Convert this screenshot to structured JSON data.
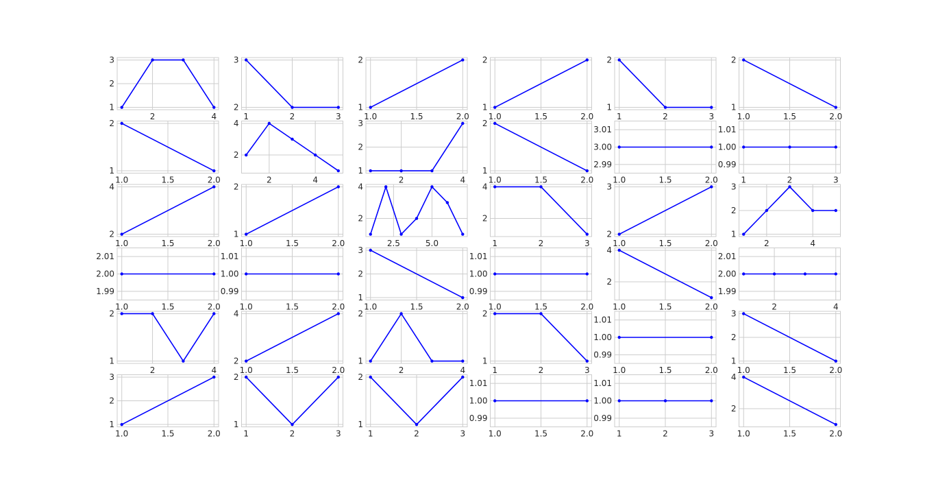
{
  "colors": {
    "line": "#0000ff",
    "grid": "#cccccc",
    "frame": "#cccccc",
    "background": "#ffffff",
    "text": "#262626"
  },
  "chart_data": [
    {
      "type": "line",
      "x": [
        1,
        2,
        3,
        4
      ],
      "values": [
        1,
        3,
        3,
        1
      ],
      "xticks": [
        "2",
        "4"
      ],
      "yticks": [
        "1",
        "2",
        "3"
      ]
    },
    {
      "type": "line",
      "x": [
        1,
        2,
        3
      ],
      "values": [
        3,
        2,
        2
      ],
      "xticks": [
        "1",
        "2",
        "3"
      ],
      "yticks": [
        "2",
        "3"
      ]
    },
    {
      "type": "line",
      "x": [
        1,
        2
      ],
      "values": [
        1,
        2
      ],
      "xticks": [
        "1.0",
        "1.5",
        "2.0"
      ],
      "yticks": [
        "1",
        "2"
      ]
    },
    {
      "type": "line",
      "x": [
        1,
        2
      ],
      "values": [
        1,
        2
      ],
      "xticks": [
        "1.0",
        "1.5",
        "2.0"
      ],
      "yticks": [
        "1",
        "2"
      ]
    },
    {
      "type": "line",
      "x": [
        1,
        2,
        3
      ],
      "values": [
        2,
        1,
        1
      ],
      "xticks": [
        "1",
        "2",
        "3"
      ],
      "yticks": [
        "1",
        "2"
      ]
    },
    {
      "type": "line",
      "x": [
        1,
        2
      ],
      "values": [
        2,
        1
      ],
      "xticks": [
        "1.0",
        "1.5",
        "2.0"
      ],
      "yticks": [
        "1",
        "2"
      ]
    },
    {
      "type": "line",
      "x": [
        1,
        2
      ],
      "values": [
        2,
        1
      ],
      "xticks": [
        "1.0",
        "1.5",
        "2.0"
      ],
      "yticks": [
        "1",
        "2"
      ]
    },
    {
      "type": "line",
      "x": [
        1,
        2,
        3,
        4,
        5
      ],
      "values": [
        2,
        4,
        3,
        2,
        1
      ],
      "xticks": [
        "2",
        "4"
      ],
      "yticks": [
        "2",
        "4"
      ]
    },
    {
      "type": "line",
      "x": [
        1,
        2,
        3,
        4
      ],
      "values": [
        1,
        1,
        1,
        3
      ],
      "xticks": [
        "2",
        "4"
      ],
      "yticks": [
        "1",
        "2",
        "3"
      ]
    },
    {
      "type": "line",
      "x": [
        1,
        2
      ],
      "values": [
        2,
        1
      ],
      "xticks": [
        "1.0",
        "1.5",
        "2.0"
      ],
      "yticks": [
        "1",
        "2"
      ]
    },
    {
      "type": "line",
      "x": [
        1,
        2
      ],
      "values": [
        3,
        3
      ],
      "xticks": [
        "1.0",
        "1.5",
        "2.0"
      ],
      "yticks": [
        "2.99",
        "3.00",
        "3.01"
      ]
    },
    {
      "type": "line",
      "x": [
        1,
        2,
        3
      ],
      "values": [
        1,
        1,
        1
      ],
      "xticks": [
        "1",
        "2",
        "3"
      ],
      "yticks": [
        "0.99",
        "1.00",
        "1.01"
      ]
    },
    {
      "type": "line",
      "x": [
        1,
        2
      ],
      "values": [
        2,
        4
      ],
      "xticks": [
        "1.0",
        "1.5",
        "2.0"
      ],
      "yticks": [
        "2",
        "4"
      ]
    },
    {
      "type": "line",
      "x": [
        1,
        2
      ],
      "values": [
        1,
        2
      ],
      "xticks": [
        "1.0",
        "1.5",
        "2.0"
      ],
      "yticks": [
        "1",
        "2"
      ]
    },
    {
      "type": "line",
      "x": [
        1,
        2,
        3,
        4,
        5,
        6,
        7
      ],
      "values": [
        1,
        4,
        1,
        2,
        4,
        3,
        1
      ],
      "xticks": [
        "2.5",
        "5.0"
      ],
      "yticks": [
        "2",
        "4"
      ]
    },
    {
      "type": "line",
      "x": [
        1,
        2,
        3
      ],
      "values": [
        4,
        4,
        1
      ],
      "xticks": [
        "1",
        "2",
        "3"
      ],
      "yticks": [
        "2",
        "4"
      ]
    },
    {
      "type": "line",
      "x": [
        1,
        2
      ],
      "values": [
        2,
        3
      ],
      "xticks": [
        "1.0",
        "1.5",
        "2.0"
      ],
      "yticks": [
        "2",
        "3"
      ]
    },
    {
      "type": "line",
      "x": [
        1,
        2,
        3,
        4,
        5
      ],
      "values": [
        1,
        2,
        3,
        2,
        2
      ],
      "xticks": [
        "2",
        "4"
      ],
      "yticks": [
        "1",
        "2",
        "3"
      ]
    },
    {
      "type": "line",
      "x": [
        1,
        2
      ],
      "values": [
        2,
        2
      ],
      "xticks": [
        "1.0",
        "1.5",
        "2.0"
      ],
      "yticks": [
        "1.99",
        "2.00",
        "2.01"
      ]
    },
    {
      "type": "line",
      "x": [
        1,
        2
      ],
      "values": [
        1,
        1
      ],
      "xticks": [
        "1.0",
        "1.5",
        "2.0"
      ],
      "yticks": [
        "0.99",
        "1.00",
        "1.01"
      ]
    },
    {
      "type": "line",
      "x": [
        1,
        2
      ],
      "values": [
        3,
        1
      ],
      "xticks": [
        "1.0",
        "1.5",
        "2.0"
      ],
      "yticks": [
        "1",
        "2",
        "3"
      ]
    },
    {
      "type": "line",
      "x": [
        1,
        2
      ],
      "values": [
        1,
        1
      ],
      "xticks": [
        "1.0",
        "1.5",
        "2.0"
      ],
      "yticks": [
        "0.99",
        "1.00",
        "1.01"
      ]
    },
    {
      "type": "line",
      "x": [
        1,
        2
      ],
      "values": [
        4,
        1
      ],
      "xticks": [
        "1.0",
        "1.5",
        "2.0"
      ],
      "yticks": [
        "2",
        "4"
      ]
    },
    {
      "type": "line",
      "x": [
        1,
        2,
        3,
        4
      ],
      "values": [
        2,
        2,
        2,
        2
      ],
      "xticks": [
        "2",
        "4"
      ],
      "yticks": [
        "1.99",
        "2.00",
        "2.01"
      ]
    },
    {
      "type": "line",
      "x": [
        1,
        2,
        3,
        4
      ],
      "values": [
        2,
        2,
        1,
        2
      ],
      "xticks": [
        "2",
        "4"
      ],
      "yticks": [
        "1",
        "2"
      ]
    },
    {
      "type": "line",
      "x": [
        1,
        2
      ],
      "values": [
        2,
        4
      ],
      "xticks": [
        "1.0",
        "1.5",
        "2.0"
      ],
      "yticks": [
        "2",
        "4"
      ]
    },
    {
      "type": "line",
      "x": [
        1,
        2,
        3,
        4
      ],
      "values": [
        1,
        2,
        1,
        1
      ],
      "xticks": [
        "2",
        "4"
      ],
      "yticks": [
        "1",
        "2"
      ]
    },
    {
      "type": "line",
      "x": [
        1,
        2,
        3
      ],
      "values": [
        2,
        2,
        1
      ],
      "xticks": [
        "1",
        "2",
        "3"
      ],
      "yticks": [
        "1",
        "2"
      ]
    },
    {
      "type": "line",
      "x": [
        1,
        2
      ],
      "values": [
        1,
        1
      ],
      "xticks": [
        "1.0",
        "1.5",
        "2.0"
      ],
      "yticks": [
        "0.99",
        "1.00",
        "1.01"
      ]
    },
    {
      "type": "line",
      "x": [
        1,
        2
      ],
      "values": [
        3,
        1
      ],
      "xticks": [
        "1.0",
        "1.5",
        "2.0"
      ],
      "yticks": [
        "1",
        "2",
        "3"
      ]
    },
    {
      "type": "line",
      "x": [
        1,
        2
      ],
      "values": [
        1,
        3
      ],
      "xticks": [
        "1.0",
        "1.5",
        "2.0"
      ],
      "yticks": [
        "1",
        "2",
        "3"
      ]
    },
    {
      "type": "line",
      "x": [
        1,
        2,
        3
      ],
      "values": [
        2,
        1,
        2
      ],
      "xticks": [
        "1",
        "2",
        "3"
      ],
      "yticks": [
        "1",
        "2"
      ]
    },
    {
      "type": "line",
      "x": [
        1,
        2,
        3
      ],
      "values": [
        2,
        1,
        2
      ],
      "xticks": [
        "1",
        "2",
        "3"
      ],
      "yticks": [
        "1",
        "2"
      ]
    },
    {
      "type": "line",
      "x": [
        1,
        2
      ],
      "values": [
        1,
        1
      ],
      "xticks": [
        "1.0",
        "1.5",
        "2.0"
      ],
      "yticks": [
        "0.99",
        "1.00",
        "1.01"
      ]
    },
    {
      "type": "line",
      "x": [
        1,
        2,
        3
      ],
      "values": [
        1,
        1,
        1
      ],
      "xticks": [
        "1",
        "2",
        "3"
      ],
      "yticks": [
        "0.99",
        "1.00",
        "1.01"
      ]
    },
    {
      "type": "line",
      "x": [
        1,
        2
      ],
      "values": [
        4,
        1
      ],
      "xticks": [
        "1.0",
        "1.5",
        "2.0"
      ],
      "yticks": [
        "2",
        "4"
      ]
    }
  ]
}
